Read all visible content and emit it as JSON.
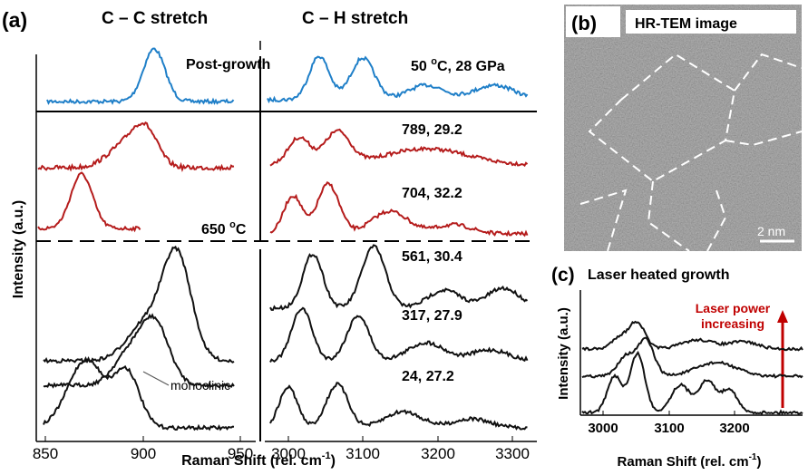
{
  "panel_a": {
    "label": "(a)",
    "title_left": "C – C stretch",
    "title_right": "C – H stretch",
    "y_label": "Intensity (a.u.)",
    "x_label": "Raman Shift (rel. cm",
    "x_label_power": "-1",
    "x_label_close": ")",
    "post_growth": "Post-growth",
    "top_label": {
      "value": "50 ",
      "degree": "o",
      "rest": "C, 28 GPa"
    },
    "threshold": {
      "value": "650 ",
      "degree": "o",
      "unit": "C"
    },
    "spectra_labels": [
      "789, 29.2",
      "704, 32.2",
      "561, 30.4",
      "317, 27.9",
      "24, 27.2"
    ],
    "annotation": "monoclinic",
    "xticks_left": [
      "850",
      "900",
      "950"
    ],
    "xticks_right": [
      "3000",
      "3100",
      "3200",
      "3300"
    ]
  },
  "panel_b": {
    "label": "(b)",
    "title": "HR-TEM image",
    "scale": "2 nm"
  },
  "panel_c": {
    "label": "(c)",
    "title": "Laser heated growth",
    "y_label": "Intensity (a.u.)",
    "arrow_label": [
      "Laser power",
      "increasing"
    ],
    "x_label": "Raman Shift (rel. cm",
    "x_label_power": "-1",
    "x_label_close": ")",
    "xticks": [
      "3000",
      "3100",
      "3200"
    ]
  }
}
